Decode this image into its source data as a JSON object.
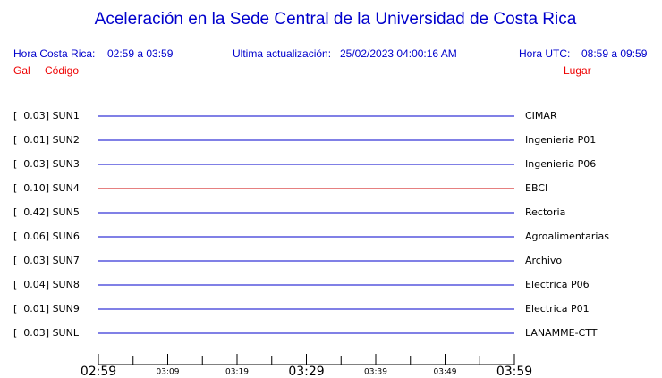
{
  "header": {
    "title": "Aceleración en la Sede Central de la Universidad de Costa Rica",
    "hora_cr_label": "Hora Costa Rica:",
    "hora_cr": "02:59 a 03:59",
    "update_label": "Ultima actualización:",
    "update": "25/02/2023 04:00:16 AM",
    "utc_label": "Hora UTC:",
    "utc": "08:59 a 09:59",
    "col_gal": "Gal",
    "col_codigo": "Código",
    "col_lugar": "Lugar"
  },
  "stations": [
    {
      "label": "[  0.03] SUN1",
      "place": "CIMAR",
      "color": "#0000cc"
    },
    {
      "label": "[  0.01] SUN2",
      "place": "Ingenieria P01",
      "color": "#0000cc"
    },
    {
      "label": "[  0.03] SUN3",
      "place": "Ingenieria P06",
      "color": "#0000cc"
    },
    {
      "label": "[  0.10] SUN4",
      "place": "EBCI",
      "color": "#cc0000"
    },
    {
      "label": "[  0.42] SUN5",
      "place": "Rectoria",
      "color": "#0000cc"
    },
    {
      "label": "[  0.06] SUN6",
      "place": "Agroalimentarias",
      "color": "#0000cc"
    },
    {
      "label": "[  0.03] SUN7",
      "place": "Archivo",
      "color": "#0000cc"
    },
    {
      "label": "[  0.04] SUN8",
      "place": "Electrica P06",
      "color": "#0000cc"
    },
    {
      "label": "[  0.01] SUN9",
      "place": "Electrica P01",
      "color": "#0000cc"
    },
    {
      "label": "[  0.03] SUNL",
      "place": "LANAMME-CTT",
      "color": "#0000cc"
    }
  ],
  "time_axis": [
    {
      "text": "02:59",
      "major": true
    },
    {
      "text": "03:09",
      "major": false
    },
    {
      "text": "03:19",
      "major": false
    },
    {
      "text": "03:29",
      "major": true
    },
    {
      "text": "03:39",
      "major": false
    },
    {
      "text": "03:49",
      "major": false
    },
    {
      "text": "03:59",
      "major": true
    }
  ]
}
